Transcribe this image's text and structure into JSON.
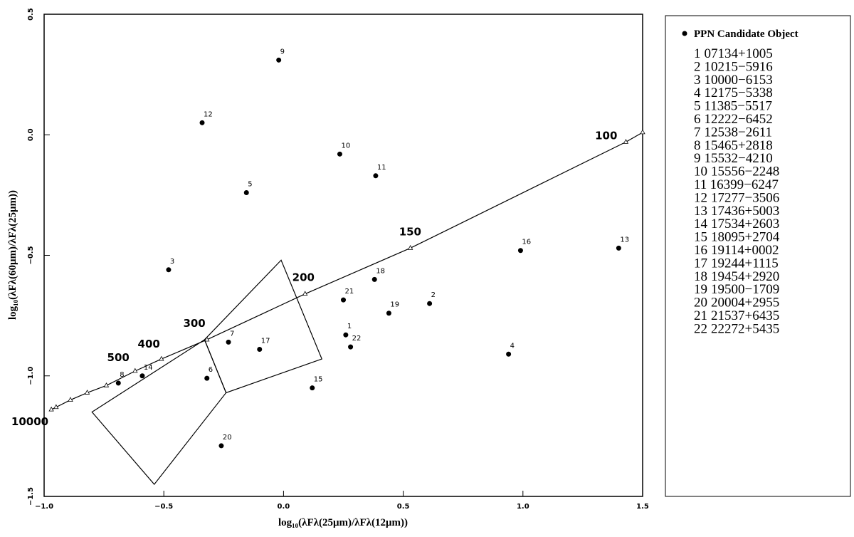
{
  "chart_data": {
    "type": "scatter",
    "xlabel": "log₁₀(λFλ(25μm)/λFλ(12μm))",
    "ylabel": "log₁₀(λFλ(60μm)/λFλ(25μm))",
    "xlim": [
      -1.0,
      1.5
    ],
    "ylim": [
      -1.5,
      0.5
    ],
    "xticks": [
      {
        "value": -1.0,
        "label": "−1.0"
      },
      {
        "value": -0.5,
        "label": "−0.5"
      },
      {
        "value": 0,
        "label": "0.0"
      },
      0.5,
      {
        "value": 1.0,
        "label": "1.0"
      },
      1.5
    ],
    "yticks": [
      0.5,
      {
        "value": 0,
        "label": "0.0"
      },
      {
        "value": -0.5,
        "label": "−0.5"
      },
      {
        "value": -1.0,
        "label": "−1.0"
      },
      {
        "value": -1.5,
        "label": "−1.5"
      }
    ],
    "series": [
      {
        "name": "PPN Candidate Object",
        "color": "#000000",
        "labels": [
          "1",
          "2",
          "3",
          "4",
          "5",
          "6",
          "7",
          "8",
          "9",
          "10",
          "11",
          "12",
          "13",
          "14",
          "15",
          "16",
          "17",
          "18",
          "19",
          "20",
          "21",
          "22"
        ],
        "ids": [
          "07134+1005",
          "10215−5916",
          "10000−6153",
          "12175−5338",
          "11385−5517",
          "12222−6452",
          "12538−2611",
          "15465+2818",
          "15532−4210",
          "15556−2248",
          "16399−6247",
          "17277−3506",
          "17436+5003",
          "17534+2603",
          "18095+2704",
          "19114+0002",
          "19244+1115",
          "19454+2920",
          "19500−1709",
          "20004+2955",
          "21537+6435",
          "22272+5435"
        ],
        "x": [
          0.26,
          0.61,
          -0.48,
          0.94,
          -0.155,
          -0.32,
          -0.23,
          -0.69,
          -0.02,
          0.235,
          0.385,
          -0.34,
          1.4,
          -0.59,
          0.12,
          0.99,
          -0.1,
          0.38,
          0.44,
          -0.26,
          0.25,
          0.28
        ],
        "values": [
          -0.83,
          -0.7,
          -0.56,
          -0.91,
          -0.24,
          -1.01,
          -0.86,
          -1.03,
          0.31,
          -0.08,
          -0.17,
          0.05,
          -0.47,
          -1.0,
          -1.05,
          -0.48,
          -0.89,
          -0.6,
          -0.74,
          -1.29,
          -0.685,
          -0.88
        ]
      }
    ],
    "curve": {
      "x": [
        -0.97,
        -0.95,
        -0.89,
        -0.82,
        -0.74,
        -0.62,
        -0.51,
        -0.32,
        0.09,
        0.53,
        1.43,
        1.5
      ],
      "y": [
        -1.14,
        -1.13,
        -1.1,
        -1.07,
        -1.04,
        -0.98,
        -0.93,
        -0.85,
        -0.66,
        -0.47,
        -0.03,
        0.01
      ],
      "temperatures": [
        10000,
        null,
        null,
        null,
        null,
        500,
        400,
        300,
        200,
        150,
        100,
        null
      ]
    },
    "regions": [
      [
        [
          -0.33,
          -0.85
        ],
        [
          -0.01,
          -0.52
        ],
        [
          0.16,
          -0.93
        ],
        [
          -0.24,
          -1.07
        ]
      ],
      [
        [
          -0.33,
          -0.85
        ],
        [
          -0.24,
          -1.07
        ],
        [
          -0.54,
          -1.45
        ],
        [
          -0.8,
          -1.15
        ]
      ]
    ]
  }
}
